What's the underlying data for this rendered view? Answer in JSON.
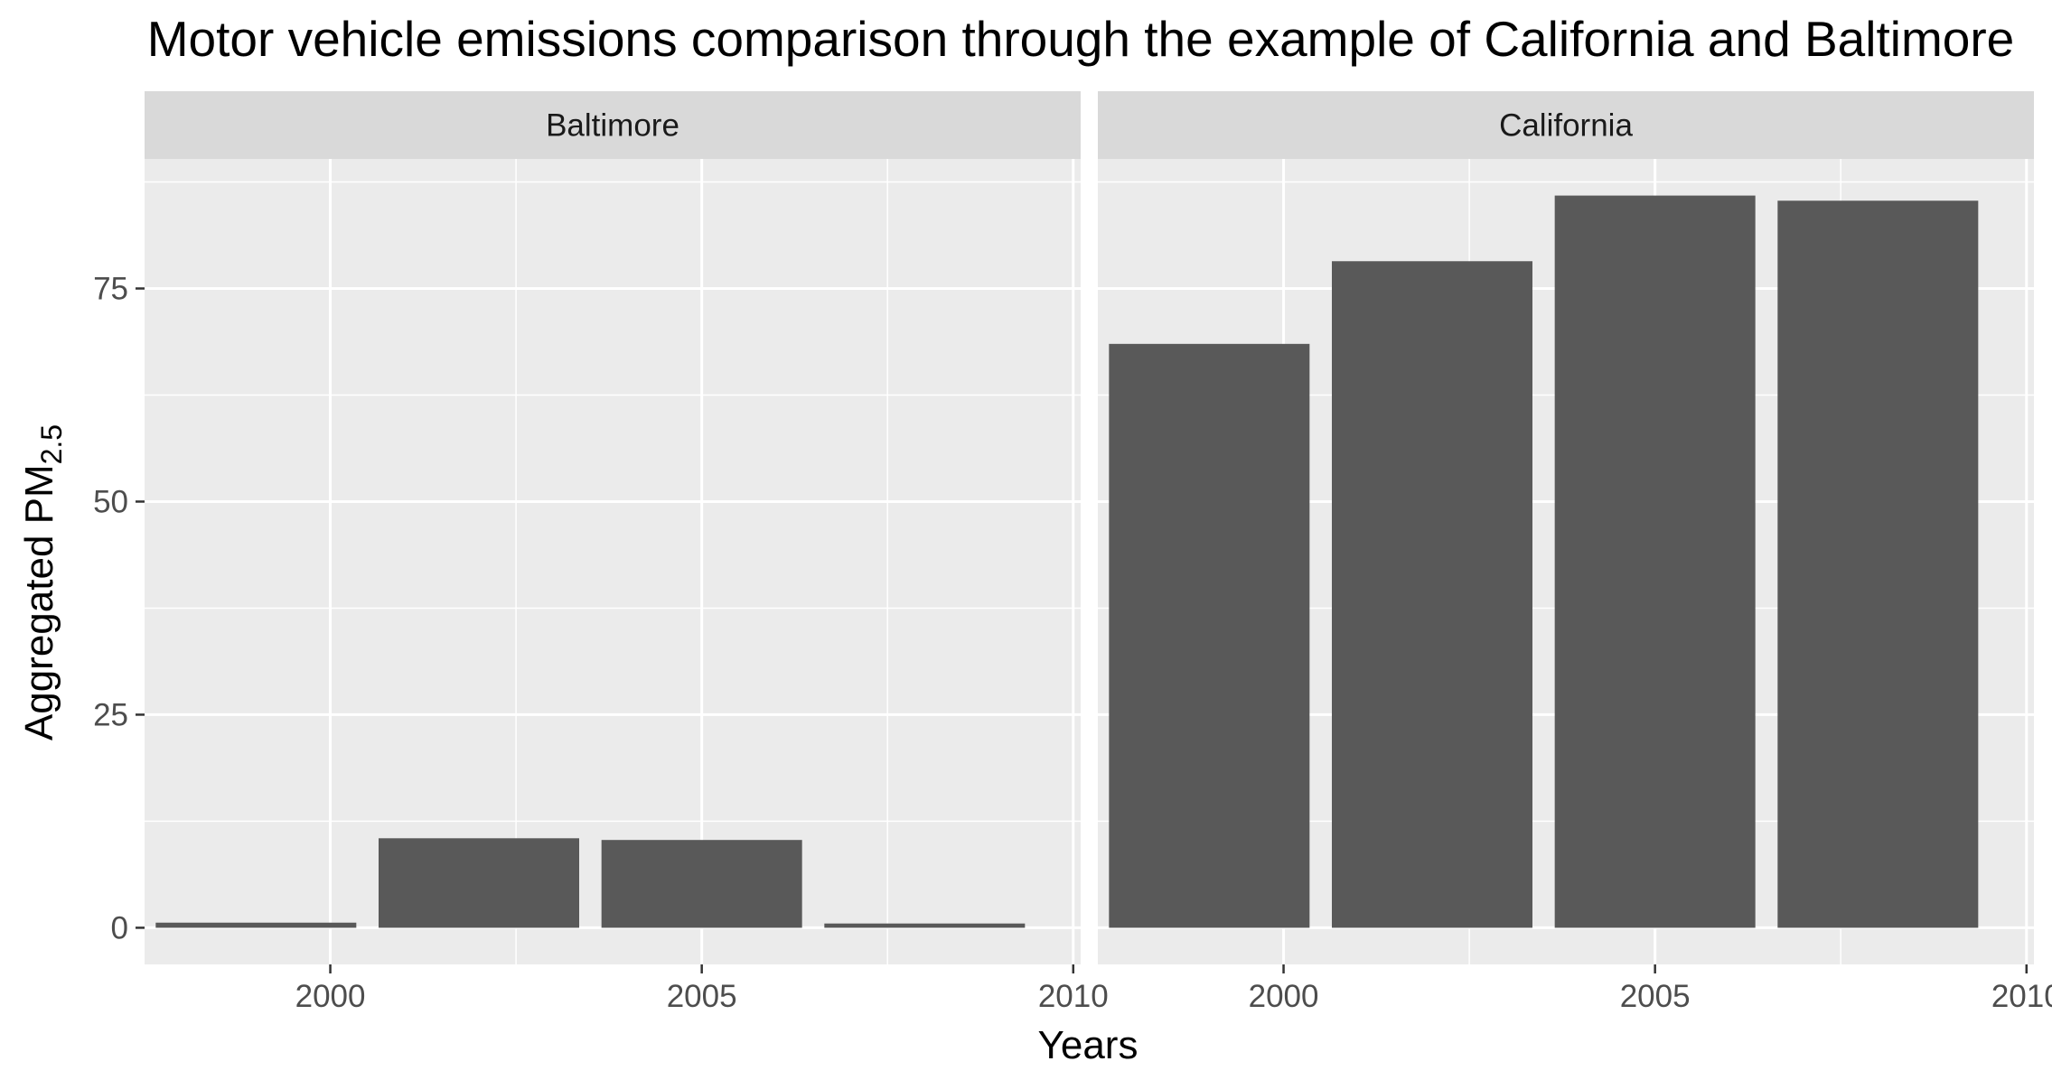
{
  "chart_data": {
    "type": "bar",
    "title": "Motor vehicle emissions comparison through the example of California and Baltimore",
    "xlabel": "Years",
    "ylabel": "Aggregated PM",
    "ylabel_subscript": "2.5",
    "facet_by": "city",
    "categories": [
      1999,
      2002,
      2005,
      2008
    ],
    "xticks": [
      2000,
      2005,
      2010
    ],
    "xlim": [
      1997.5,
      2010.1
    ],
    "yticks": [
      0,
      25,
      50,
      75
    ],
    "ylim": [
      -4.3,
      90.2
    ],
    "grid": true,
    "legend": "none",
    "bar_color": "#595959",
    "panel_background": "#ebebeb",
    "strip_background": "#d9d9d9",
    "panels": [
      {
        "name": "Baltimore",
        "values": [
          0.6,
          10.5,
          10.3,
          0.5
        ]
      },
      {
        "name": "California",
        "values": [
          68.5,
          78.2,
          85.9,
          85.3
        ]
      }
    ]
  }
}
